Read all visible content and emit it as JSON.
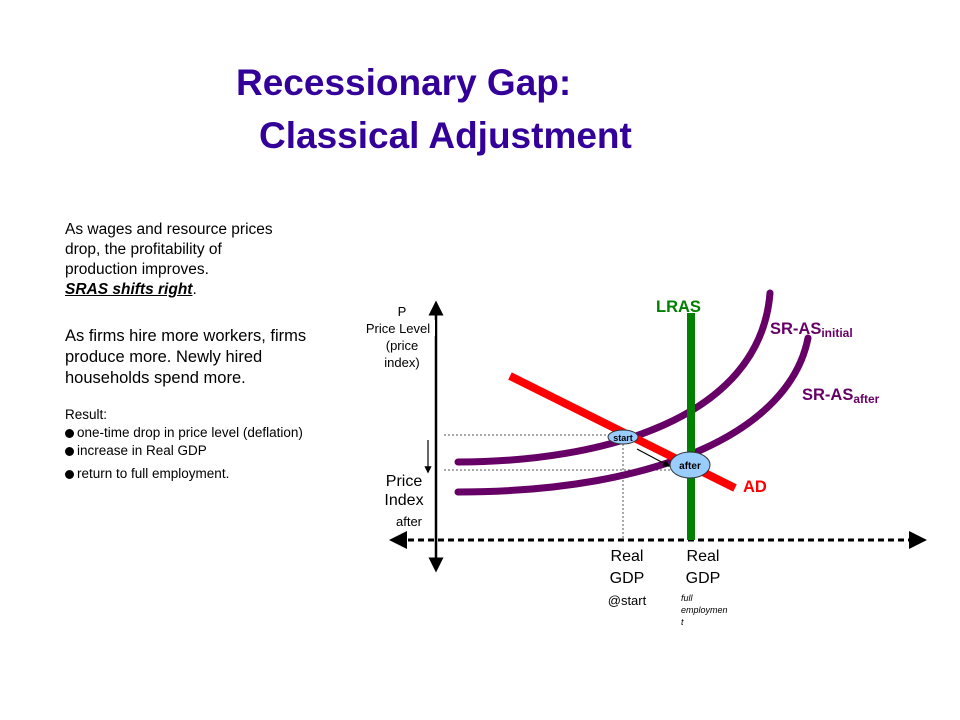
{
  "title": {
    "line1": "Recessionary Gap:",
    "line2": "Classical Adjustment"
  },
  "text": {
    "p1": [
      "As wages and resource prices",
      "drop, the profitability of",
      "production improves."
    ],
    "p1_emph": "SRAS shifts right",
    "p1_emph_tail": ".",
    "p2": [
      "As firms hire more workers, firms",
      "produce more. Newly hired",
      "households spend more."
    ],
    "result_label": "Result:",
    "bullets": [
      "one-time drop in price level (deflation)",
      "increase in Real GDP",
      "return to full employment."
    ]
  },
  "diagram": {
    "y_axis_label": [
      "P",
      "Price Level",
      "(price",
      "index)"
    ],
    "price_index_after": [
      "Price",
      "Index",
      "after"
    ],
    "curves": {
      "lras": "LRAS",
      "sras_initial": {
        "main": "SR-AS",
        "sub": "initial"
      },
      "sras_after": {
        "main": "SR-AS",
        "sub": "after"
      },
      "ad": "AD"
    },
    "points": {
      "start": "start",
      "after": "after"
    },
    "gdp_start": [
      "Real",
      "GDP",
      "@start"
    ],
    "gdp_full": [
      "Real",
      "GDP"
    ],
    "gdp_full_sub": [
      "full",
      "employmen",
      "t"
    ],
    "colors": {
      "title": "#330099",
      "lras": "#008000",
      "sras": "#660066",
      "ad": "#ff0000",
      "point_fill": "#99ccff"
    }
  }
}
